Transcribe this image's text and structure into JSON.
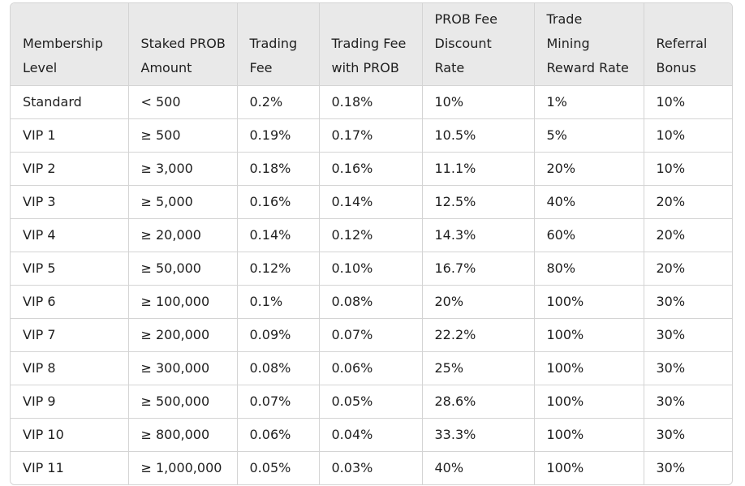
{
  "table": {
    "header": [
      [
        "Membership",
        "Level"
      ],
      [
        "Staked PROB",
        "Amount"
      ],
      [
        "Trading",
        "Fee"
      ],
      [
        "Trading Fee",
        "with PROB"
      ],
      [
        "PROB Fee",
        "Discount",
        "Rate"
      ],
      [
        "Trade",
        "Mining",
        "Reward Rate"
      ],
      [
        "Referral",
        "Bonus"
      ]
    ],
    "rows": [
      [
        "Standard",
        "< 500",
        "0.2%",
        "0.18%",
        "10%",
        "1%",
        "10%"
      ],
      [
        "VIP 1",
        "≥ 500",
        "0.19%",
        "0.17%",
        "10.5%",
        "5%",
        "10%"
      ],
      [
        "VIP 2",
        "≥ 3,000",
        "0.18%",
        "0.16%",
        "11.1%",
        "20%",
        "10%"
      ],
      [
        "VIP 3",
        "≥ 5,000",
        "0.16%",
        "0.14%",
        "12.5%",
        "40%",
        "20%"
      ],
      [
        "VIP 4",
        "≥ 20,000",
        "0.14%",
        "0.12%",
        "14.3%",
        "60%",
        "20%"
      ],
      [
        "VIP 5",
        "≥ 50,000",
        "0.12%",
        "0.10%",
        "16.7%",
        "80%",
        "20%"
      ],
      [
        "VIP 6",
        "≥ 100,000",
        "0.1%",
        "0.08%",
        "20%",
        "100%",
        "30%"
      ],
      [
        "VIP 7",
        "≥ 200,000",
        "0.09%",
        "0.07%",
        "22.2%",
        "100%",
        "30%"
      ],
      [
        "VIP 8",
        "≥ 300,000",
        "0.08%",
        "0.06%",
        "25%",
        "100%",
        "30%"
      ],
      [
        "VIP 9",
        "≥ 500,000",
        "0.07%",
        "0.05%",
        "28.6%",
        "100%",
        "30%"
      ],
      [
        "VIP 10",
        "≥ 800,000",
        "0.06%",
        "0.04%",
        "33.3%",
        "100%",
        "30%"
      ],
      [
        "VIP 11",
        "≥ 1,000,000",
        "0.05%",
        "0.03%",
        "40%",
        "100%",
        "30%"
      ]
    ]
  }
}
